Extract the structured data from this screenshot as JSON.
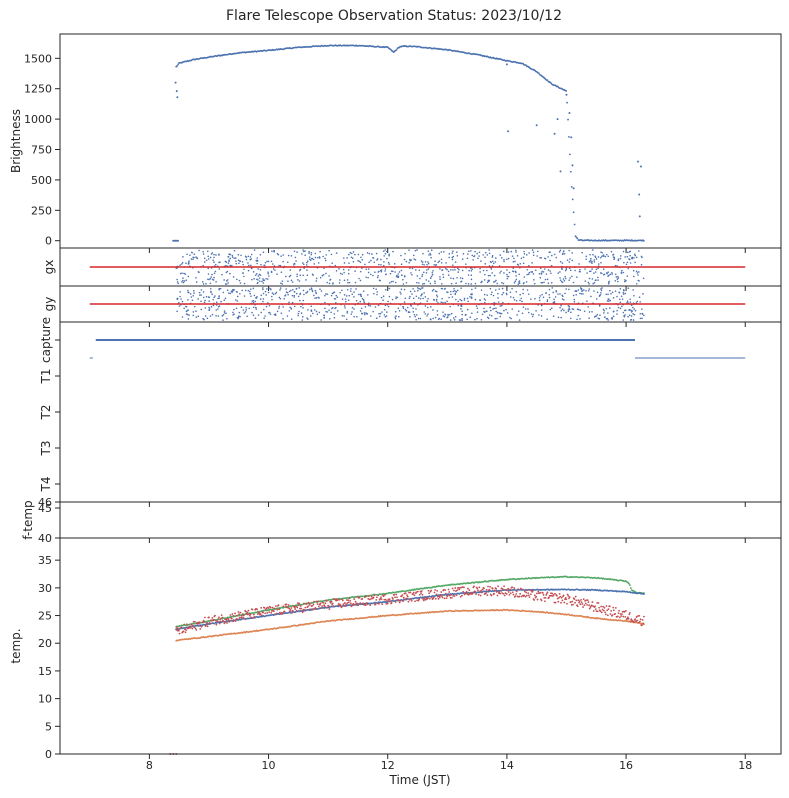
{
  "chart_data": {
    "type": "scatter",
    "title": "Flare Telescope Observation Status: 2023/10/12",
    "xlabel": "Time (JST)",
    "xlim": [
      6.5,
      18.6
    ],
    "x_ticks": [
      "8",
      "10",
      "12",
      "14",
      "16",
      "18"
    ],
    "x_tick_values": [
      8,
      10,
      12,
      14,
      16,
      18
    ],
    "colors": {
      "blue": "#4c72b0",
      "orange": "#dd8452",
      "green": "#55a868",
      "red": "#c44e52"
    },
    "panels": [
      {
        "id": "brightness",
        "ylabel": "Brightness",
        "ylim": [
          -60,
          1700
        ],
        "y_ticks": [
          "0",
          "250",
          "500",
          "750",
          "1000",
          "1250",
          "1500"
        ],
        "y_tick_values": [
          0,
          250,
          500,
          750,
          1000,
          1250,
          1500
        ],
        "series": [
          {
            "name": "brightness",
            "color": "#4c72b0",
            "kind": "points",
            "x": [
              8.45,
              8.5,
              8.75,
              9.0,
              9.5,
              10.0,
              10.5,
              11.0,
              11.5,
              12.0,
              12.1,
              12.2,
              12.3,
              12.5,
              13.0,
              13.5,
              14.0,
              14.25,
              14.5,
              14.75,
              15.0,
              15.08,
              15.15,
              15.2,
              15.3,
              16.0,
              16.3
            ],
            "y": [
              1430,
              1460,
              1490,
              1510,
              1545,
              1565,
              1590,
              1605,
              1605,
              1590,
              1550,
              1595,
              1600,
              1595,
              1570,
              1530,
              1480,
              1460,
              1390,
              1290,
              1230,
              500,
              40,
              5,
              2,
              2,
              2
            ]
          },
          {
            "name": "brightness outliers",
            "color": "#4c72b0",
            "kind": "points",
            "x": [
              8.44,
              8.46,
              8.47,
              14.0,
              14.02,
              14.5,
              14.8,
              14.85,
              14.9,
              15.0,
              15.05,
              15.08,
              15.1,
              15.12,
              16.2,
              16.22,
              16.23,
              16.25
            ],
            "y": [
              1300,
              1230,
              1180,
              1450,
              900,
              950,
              880,
              1000,
              570,
              1200,
              1050,
              850,
              620,
              430,
              650,
              380,
              200,
              610
            ]
          },
          {
            "name": "pre-flare zeros",
            "color": "#4c72b0",
            "kind": "points",
            "x": [
              8.4,
              8.42,
              8.44,
              8.46,
              8.48
            ],
            "y": [
              0,
              0,
              0,
              0,
              0
            ]
          }
        ]
      },
      {
        "id": "gx",
        "ylabel": "gx",
        "ylim": [
          -1,
          1
        ],
        "y_ticks": [],
        "series": [
          {
            "name": "gx guide signal",
            "color": "#4c72b0",
            "kind": "noise",
            "x_range": [
              8.45,
              16.3
            ],
            "spread": 0.9
          },
          {
            "name": "gx reference",
            "color": "#d62728",
            "kind": "line",
            "x": [
              7.0,
              18.0
            ],
            "y": [
              0,
              0
            ]
          }
        ]
      },
      {
        "id": "gy",
        "ylabel": "gy",
        "ylim": [
          -1,
          1
        ],
        "y_ticks": [],
        "series": [
          {
            "name": "gy guide signal",
            "color": "#4c72b0",
            "kind": "noise",
            "x_range": [
              8.45,
              16.3
            ],
            "spread": 0.9
          },
          {
            "name": "gy reference",
            "color": "#d62728",
            "kind": "line",
            "x": [
              7.0,
              18.0
            ],
            "y": [
              0,
              0
            ]
          }
        ]
      },
      {
        "id": "status",
        "ylabel": "",
        "ylim": [
          4.5,
          -0.5
        ],
        "y_ticks": [
          "capture",
          "T1",
          "T2",
          "T3",
          "T4"
        ],
        "y_tick_values": [
          0,
          1,
          2,
          3,
          4
        ],
        "series": [
          {
            "name": "capture",
            "color": "#4c72b0",
            "kind": "segments",
            "segments": [
              [
                7.1,
                16.15,
                0.0
              ]
            ]
          },
          {
            "name": "T1",
            "color": "#4c72b0",
            "kind": "segments",
            "segments": [
              [
                7.0,
                7.05,
                0.5
              ],
              [
                16.15,
                18.0,
                0.5
              ]
            ]
          }
        ]
      },
      {
        "id": "f-temp",
        "ylabel": "f-temp",
        "ylim": [
          40,
          46
        ],
        "y_ticks": [
          "40",
          "45",
          "46"
        ],
        "y_tick_values": [
          40,
          45,
          46
        ],
        "series": []
      },
      {
        "id": "temp",
        "ylabel": "temp.",
        "ylim": [
          0,
          39
        ],
        "y_ticks": [
          "0",
          "5",
          "10",
          "15",
          "20",
          "25",
          "30",
          "35"
        ],
        "y_tick_values": [
          0,
          5,
          10,
          15,
          20,
          25,
          30,
          35
        ],
        "series": [
          {
            "name": "temp 1",
            "color": "#55a868",
            "kind": "points",
            "x": [
              8.45,
              9.0,
              10.0,
              11.0,
              12.0,
              13.0,
              14.0,
              14.5,
              15.0,
              15.5,
              16.0,
              16.05,
              16.1,
              16.2,
              16.3
            ],
            "y": [
              23.0,
              24.0,
              26.0,
              27.8,
              29.0,
              30.5,
              31.5,
              31.8,
              32.0,
              31.8,
              31.2,
              30.8,
              29.5,
              29.1,
              29.0
            ]
          },
          {
            "name": "temp 2",
            "color": "#4c72b0",
            "kind": "points",
            "x": [
              8.45,
              9.0,
              10.0,
              11.0,
              12.0,
              13.0,
              14.0,
              15.0,
              15.5,
              16.0,
              16.3
            ],
            "y": [
              22.5,
              23.5,
              25.0,
              26.5,
              27.5,
              28.8,
              29.6,
              29.7,
              29.6,
              29.3,
              28.9
            ]
          },
          {
            "name": "temp 3",
            "color": "#dd8452",
            "kind": "points",
            "x": [
              8.45,
              9.0,
              10.0,
              11.0,
              12.0,
              13.0,
              14.0,
              14.5,
              15.0,
              15.5,
              16.0,
              16.3
            ],
            "y": [
              20.5,
              21.2,
              22.5,
              24.0,
              25.0,
              25.8,
              26.0,
              25.7,
              25.2,
              24.5,
              24.0,
              23.5
            ]
          },
          {
            "name": "temp 4",
            "color": "#c44e52",
            "kind": "noisy",
            "x": [
              8.45,
              9.0,
              10.0,
              11.0,
              12.0,
              13.0,
              13.5,
              14.0,
              14.5,
              15.0,
              15.5,
              16.0,
              16.3
            ],
            "y": [
              22.0,
              24.0,
              25.8,
              27.0,
              28.0,
              29.0,
              29.5,
              29.5,
              28.5,
              28.0,
              26.5,
              25.0,
              24.0
            ],
            "noise": 0.9
          },
          {
            "name": "temp origin",
            "color": "#c44e52",
            "kind": "points",
            "x": [
              8.35,
              8.4,
              8.45
            ],
            "y": [
              0,
              0,
              0
            ]
          }
        ]
      }
    ]
  }
}
